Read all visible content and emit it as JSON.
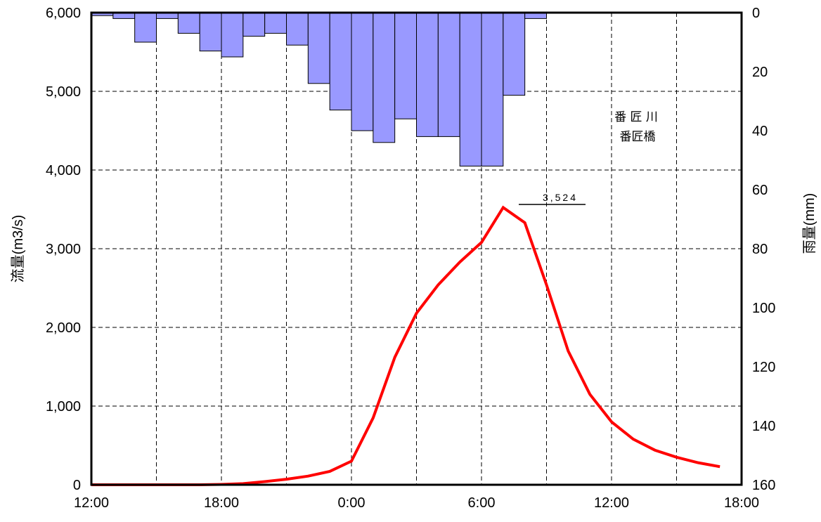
{
  "chart_data": {
    "type": "bar+line",
    "x_ticks": [
      "12:00",
      "18:00",
      "0:00",
      "6:00",
      "12:00",
      "18:00"
    ],
    "x_range_hours": [
      0,
      30
    ],
    "flow": {
      "ylabel": "流量(m3/s)",
      "ylim": [
        0,
        6000
      ],
      "y_ticks": [
        "0",
        "1,000",
        "2,000",
        "3,000",
        "4,000",
        "5,000",
        "6,000"
      ],
      "color": "#ff0000",
      "x_hours": [
        0,
        1,
        2,
        3,
        4,
        5,
        6,
        7,
        8,
        9,
        10,
        11,
        12,
        13,
        14,
        15,
        16,
        17,
        18,
        19,
        20,
        21,
        22,
        23,
        24,
        25,
        26,
        27,
        28,
        29
      ],
      "values": [
        0,
        0,
        0,
        0,
        0,
        0,
        5,
        15,
        40,
        70,
        110,
        170,
        300,
        850,
        1620,
        2180,
        2540,
        2830,
        3080,
        3524,
        3330,
        2540,
        1700,
        1150,
        800,
        580,
        440,
        350,
        280,
        230
      ]
    },
    "rain": {
      "ylabel": "雨量(mm)",
      "ylim": [
        0,
        160
      ],
      "inverted": true,
      "y_ticks": [
        "0",
        "20",
        "40",
        "60",
        "80",
        "100",
        "120",
        "140",
        "160"
      ],
      "color": "#9999ff",
      "x_hours": [
        0.5,
        1.5,
        2.5,
        3.5,
        4.5,
        5.5,
        6.5,
        7.5,
        8.5,
        9.5,
        10.5,
        11.5,
        12.5,
        13.5,
        14.5,
        15.5,
        16.5,
        17.5,
        18.5,
        19.5,
        20.5
      ],
      "values": [
        1,
        2,
        10,
        2,
        7,
        13,
        15,
        8,
        7,
        11,
        24,
        33,
        40,
        44,
        36,
        42,
        42,
        52,
        52,
        28,
        2
      ]
    },
    "grid": true,
    "annotation": {
      "text": "3,524",
      "x_hour": 21
    },
    "station": {
      "river": "番 匠 川",
      "site": "番匠橋"
    }
  }
}
